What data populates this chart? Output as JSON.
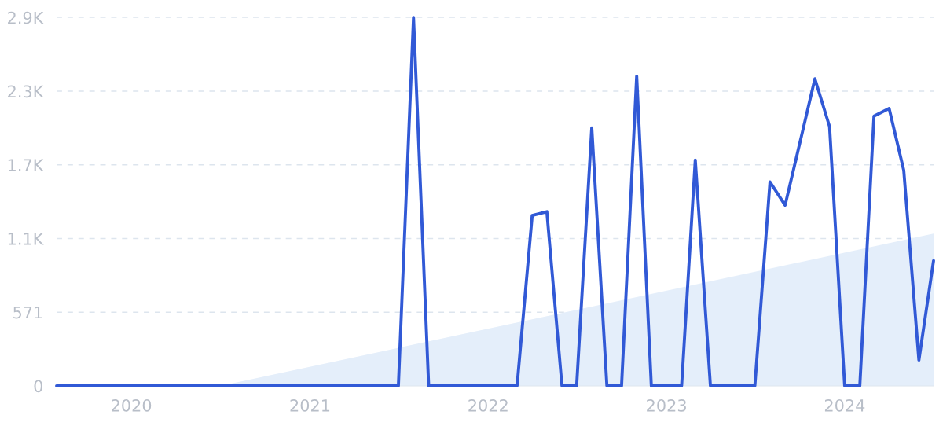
{
  "chart_data": {
    "type": "line",
    "x": [
      "2019-08",
      "2019-09",
      "2019-10",
      "2019-11",
      "2019-12",
      "2020-01",
      "2020-02",
      "2020-03",
      "2020-04",
      "2020-05",
      "2020-06",
      "2020-07",
      "2020-08",
      "2020-09",
      "2020-10",
      "2020-11",
      "2020-12",
      "2021-01",
      "2021-02",
      "2021-03",
      "2021-04",
      "2021-05",
      "2021-06",
      "2021-07",
      "2021-08",
      "2021-09",
      "2021-10",
      "2021-11",
      "2021-12",
      "2022-01",
      "2022-02",
      "2022-03",
      "2022-04",
      "2022-05",
      "2022-06",
      "2022-07",
      "2022-08",
      "2022-09",
      "2022-10",
      "2022-11",
      "2022-12",
      "2023-01",
      "2023-02",
      "2023-03",
      "2023-04",
      "2023-05",
      "2023-06",
      "2023-07",
      "2023-08",
      "2023-09",
      "2023-10",
      "2023-11",
      "2023-12",
      "2024-01",
      "2024-02",
      "2024-03",
      "2024-04",
      "2024-05",
      "2024-06",
      "2024-07"
    ],
    "series": [
      {
        "type": "area",
        "color": "#e4eefa",
        "x": [
          "2020-07",
          "2024-07"
        ],
        "values": [
          0,
          1180
        ]
      },
      {
        "color": "#3159d6",
        "values": [
          0,
          0,
          0,
          0,
          0,
          0,
          0,
          0,
          0,
          0,
          0,
          0,
          0,
          0,
          0,
          0,
          0,
          0,
          0,
          0,
          0,
          0,
          0,
          0,
          2855,
          0,
          0,
          0,
          0,
          0,
          0,
          0,
          1320,
          1350,
          0,
          0,
          2000,
          0,
          0,
          2400,
          0,
          0,
          0,
          1750,
          0,
          0,
          0,
          0,
          1580,
          1400,
          1880,
          2380,
          2010,
          0,
          0,
          2090,
          2150,
          1670,
          200,
          970
        ]
      }
    ],
    "xlim": [
      "2019-08",
      "2024-07"
    ],
    "xticks": [
      {
        "value": "2020-01",
        "label": "2020"
      },
      {
        "value": "2021-01",
        "label": "2021"
      },
      {
        "value": "2022-01",
        "label": "2022"
      },
      {
        "value": "2023-01",
        "label": "2023"
      },
      {
        "value": "2024-01",
        "label": "2024"
      }
    ],
    "ylim": [
      0,
      2855
    ],
    "yticks": [
      0,
      571,
      {
        "value": 1142,
        "label": "1.1K"
      },
      {
        "value": 1713,
        "label": "1.7K"
      },
      {
        "value": 2284,
        "label": "2.3K"
      },
      {
        "value": 2855,
        "label": "2.9K"
      }
    ],
    "grid": "y",
    "line_style": "solid",
    "marker": "none"
  }
}
